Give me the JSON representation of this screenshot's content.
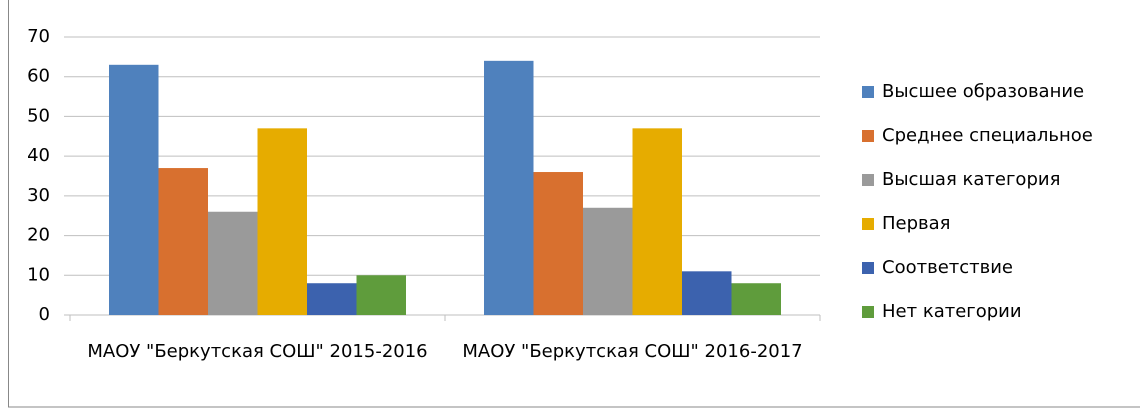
{
  "chart_data": {
    "type": "bar",
    "categories": [
      "МАОУ \"Беркутская СОШ\" 2015-2016",
      "МАОУ \"Беркутская СОШ\" 2016-2017"
    ],
    "series": [
      {
        "name": "Высшее образование",
        "color": "#4f81bd",
        "values": [
          63,
          64
        ]
      },
      {
        "name": "Среднее специальное",
        "color": "#d8702f",
        "values": [
          37,
          36
        ]
      },
      {
        "name": "Высшая категория",
        "color": "#9a9a9a",
        "values": [
          26,
          27
        ]
      },
      {
        "name": "Первая",
        "color": "#e6ac00",
        "values": [
          47,
          47
        ]
      },
      {
        "name": "Соответствие",
        "color": "#3c62ae",
        "values": [
          8,
          11
        ]
      },
      {
        "name": "Нет категории",
        "color": "#5f9c3c",
        "values": [
          10,
          8
        ]
      }
    ],
    "ylim": [
      0,
      70
    ],
    "yticks": [
      0,
      10,
      20,
      30,
      40,
      50,
      60,
      70
    ],
    "grid": true,
    "legend": "right"
  }
}
